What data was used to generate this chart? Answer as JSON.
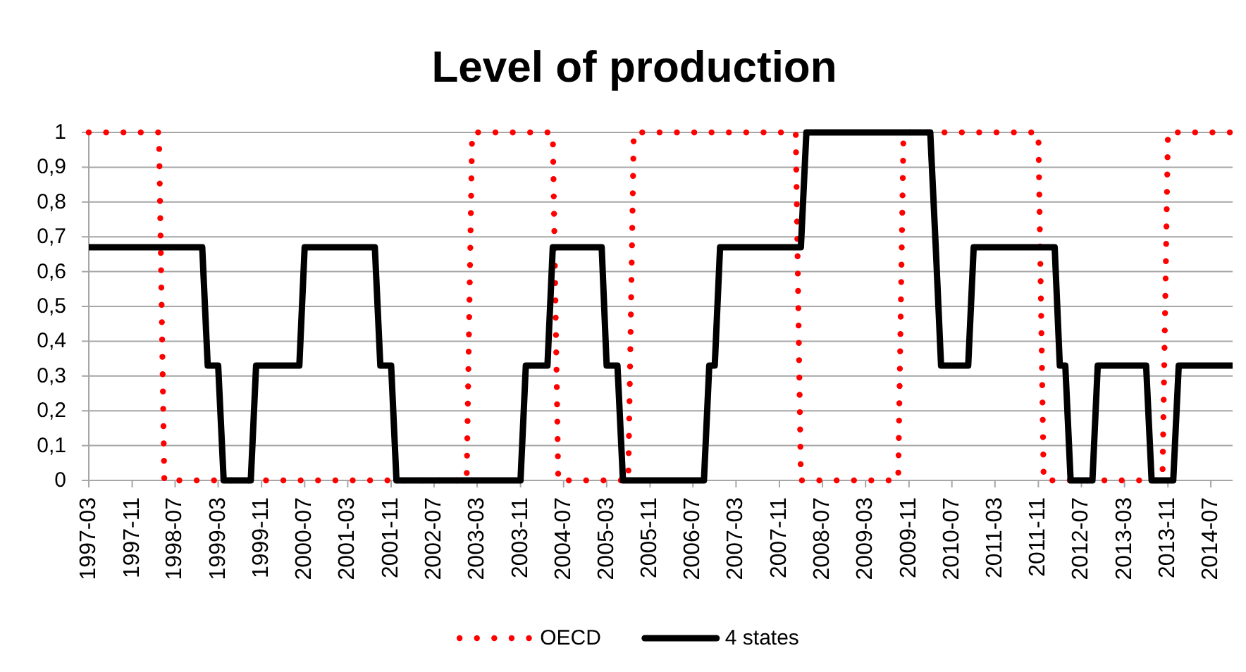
{
  "chart_data": {
    "type": "line",
    "title": "Level of production",
    "xlim": [
      "1997-03",
      "2014-11"
    ],
    "xticks": [
      "1997-03",
      "1997-11",
      "1998-07",
      "1999-03",
      "1999-11",
      "2000-07",
      "2001-03",
      "2001-11",
      "2002-07",
      "2003-03",
      "2003-11",
      "2004-07",
      "2005-03",
      "2005-11",
      "2006-07",
      "2007-03",
      "2007-11",
      "2008-07",
      "2009-03",
      "2009-11",
      "2010-07",
      "2011-03",
      "2011-11",
      "2012-07",
      "2013-03",
      "2013-11",
      "2014-07"
    ],
    "ylim": [
      0,
      1
    ],
    "yticks": [
      0,
      {
        "value": 0.1,
        "label": "0,1"
      },
      {
        "value": 0.2,
        "label": "0,2"
      },
      {
        "value": 0.3,
        "label": "0,3"
      },
      {
        "value": 0.4,
        "label": "0,4"
      },
      {
        "value": 0.5,
        "label": "0,5"
      },
      {
        "value": 0.6,
        "label": "0,6"
      },
      {
        "value": 0.7,
        "label": "0,7"
      },
      {
        "value": 0.8,
        "label": "0,8"
      },
      {
        "value": 0.9,
        "label": "0,9"
      },
      1
    ],
    "grid": "y",
    "legend": "bottom",
    "series": [
      {
        "name": "OECD",
        "color": "#ff0000",
        "line_style": "dotted",
        "x": [
          "1997-03",
          "1998-04",
          "1998-05",
          "2003-01",
          "2003-02",
          "2004-05",
          "2004-06",
          "2005-07",
          "2005-08",
          "2008-02",
          "2008-03",
          "2009-09",
          "2009-10",
          "2011-11",
          "2011-12",
          "2013-10",
          "2013-11",
          "2014-11"
        ],
        "values": [
          1,
          1,
          0,
          0,
          1,
          1,
          0,
          0,
          1,
          1,
          0,
          0,
          1,
          1,
          0,
          0,
          1,
          1
        ]
      },
      {
        "name": "4 states",
        "color": "#000000",
        "line_style": "solid",
        "x": [
          "1997-03",
          "1998-12",
          "1999-01",
          "1999-03",
          "1999-04",
          "1999-09",
          "1999-10",
          "2000-06",
          "2000-07",
          "2001-08",
          "2001-09",
          "2001-11",
          "2001-12",
          "2003-11",
          "2003-12",
          "2004-04",
          "2004-05",
          "2005-02",
          "2005-03",
          "2005-05",
          "2005-06",
          "2006-09",
          "2006-10",
          "2006-11",
          "2006-12",
          "2008-03",
          "2008-04",
          "2010-03",
          "2010-04",
          "2010-05",
          "2010-10",
          "2010-11",
          "2012-02",
          "2012-03",
          "2012-04",
          "2012-05",
          "2012-09",
          "2012-10",
          "2013-07",
          "2013-08",
          "2013-12",
          "2014-01",
          "2014-11"
        ],
        "values": [
          0.67,
          0.67,
          0.33,
          0.33,
          0,
          0,
          0.33,
          0.33,
          0.67,
          0.67,
          0.33,
          0.33,
          0,
          0,
          0.33,
          0.33,
          0.67,
          0.67,
          0.33,
          0.33,
          0,
          0,
          0.33,
          0.33,
          0.67,
          0.67,
          1,
          1,
          0.67,
          0.33,
          0.33,
          0.67,
          0.67,
          0.33,
          0.33,
          0,
          0,
          0.33,
          0.33,
          0,
          0,
          0.33,
          0.33
        ]
      }
    ]
  }
}
